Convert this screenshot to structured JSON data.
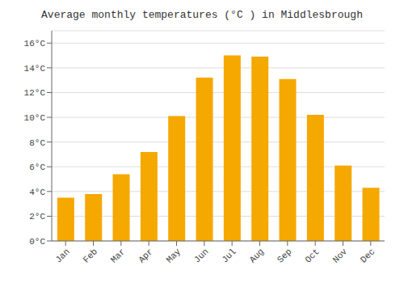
{
  "chart_data": {
    "type": "bar",
    "title": "Average monthly temperatures (°C ) in Middlesbrough",
    "categories": [
      "Jan",
      "Feb",
      "Mar",
      "Apr",
      "May",
      "Jun",
      "Jul",
      "Aug",
      "Sep",
      "Oct",
      "Nov",
      "Dec"
    ],
    "values": [
      3.5,
      3.8,
      5.4,
      7.2,
      10.1,
      13.2,
      15.0,
      14.9,
      13.1,
      10.2,
      6.1,
      4.3
    ],
    "color": "#F5A800",
    "ylim": [
      0,
      17
    ],
    "yticks": [
      {
        "value": 0,
        "label": "0°C"
      },
      {
        "value": 2,
        "label": "2°C"
      },
      {
        "value": 4,
        "label": "4°C"
      },
      {
        "value": 6,
        "label": "6°C"
      },
      {
        "value": 8,
        "label": "8°C"
      },
      {
        "value": 10,
        "label": "10°C"
      },
      {
        "value": 12,
        "label": "12°C"
      },
      {
        "value": 14,
        "label": "14°C"
      },
      {
        "value": 16,
        "label": "16°C"
      }
    ],
    "grid": true
  }
}
